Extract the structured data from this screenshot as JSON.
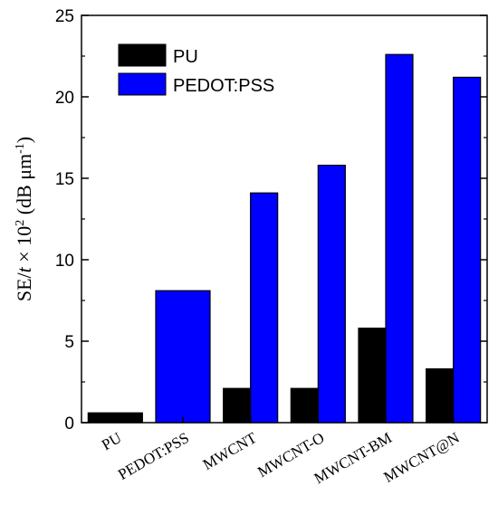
{
  "chart_data": {
    "type": "bar",
    "categories": [
      "PU",
      "PEDOT:PSS",
      "MWCNT",
      "MWCNT-O",
      "MWCNT-BM",
      "MWCNT@N"
    ],
    "series": [
      {
        "name": "PU",
        "color": "#000000",
        "values": [
          0.6,
          null,
          2.1,
          2.1,
          5.8,
          3.3
        ]
      },
      {
        "name": "PEDOT:PSS",
        "color": "#0000ff",
        "values": [
          null,
          8.1,
          14.1,
          15.8,
          22.6,
          21.2
        ]
      }
    ],
    "ylim": [
      0,
      25
    ],
    "yticks": [
      0,
      5,
      10,
      15,
      20,
      25
    ],
    "ylabel": {
      "prefix": "SE/",
      "italic": "t",
      "times": " × 10",
      "exp": "2",
      "units": " (dB μm",
      "units_exp": "-1",
      "close": ")"
    },
    "legend_position": "top-left",
    "grid": false
  }
}
